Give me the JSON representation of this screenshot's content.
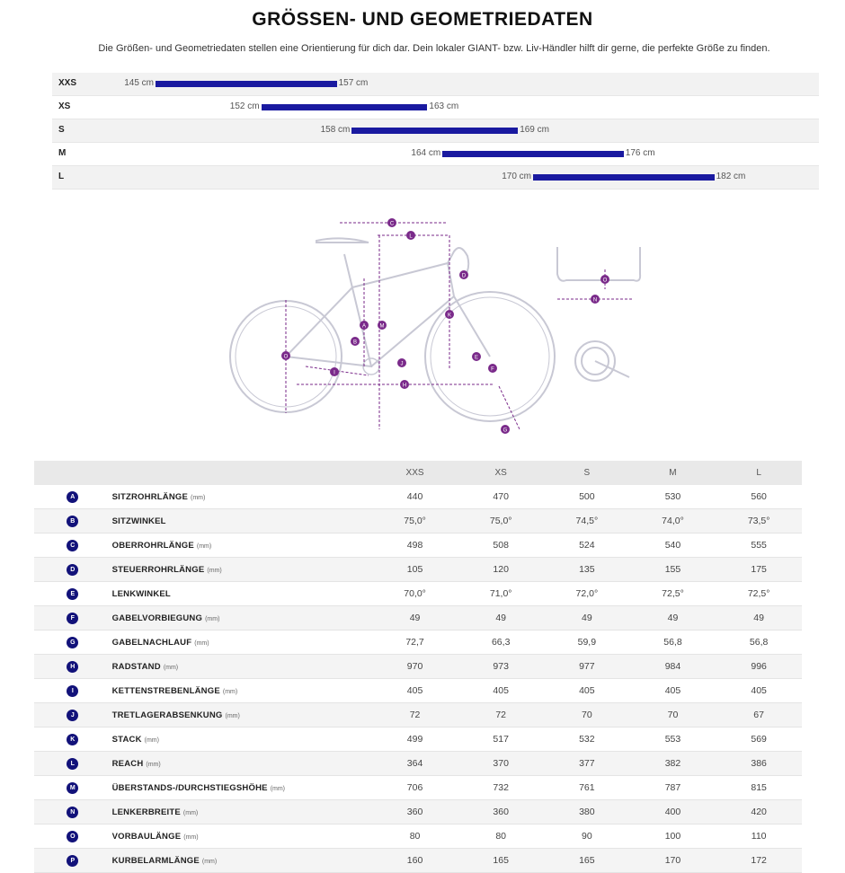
{
  "title": "GRÖSSEN- UND GEOMETRIEDATEN",
  "subtitle": "Die Größen- und Geometriedaten stellen eine Orientierung für dich dar. Dein lokaler GIANT- bzw. Liv-Händler hilft dir gerne, die perfekte Größe zu finden.",
  "size_chart": {
    "rows": [
      {
        "size": "XXS",
        "min": "145 cm",
        "max": "157 cm",
        "min_cm": 145,
        "max_cm": 157
      },
      {
        "size": "XS",
        "min": "152 cm",
        "max": "163 cm",
        "min_cm": 152,
        "max_cm": 163
      },
      {
        "size": "S",
        "min": "158 cm",
        "max": "169 cm",
        "min_cm": 158,
        "max_cm": 169
      },
      {
        "size": "M",
        "min": "164 cm",
        "max": "176 cm",
        "min_cm": 164,
        "max_cm": 176
      },
      {
        "size": "L",
        "min": "170 cm",
        "max": "182 cm",
        "min_cm": 170,
        "max_cm": 182
      }
    ]
  },
  "diagram_labels": [
    "C",
    "L",
    "D",
    "K",
    "A",
    "M",
    "B",
    "J",
    "E",
    "F",
    "O",
    "I",
    "H",
    "G",
    "O",
    "N"
  ],
  "geometry_table": {
    "headers": [
      "XXS",
      "XS",
      "S",
      "M",
      "L"
    ],
    "rows": [
      {
        "letter": "A",
        "name": "SITZROHRLÄNGE",
        "unit": "(mm)",
        "values": [
          "440",
          "470",
          "500",
          "530",
          "560"
        ]
      },
      {
        "letter": "B",
        "name": "SITZWINKEL",
        "unit": "",
        "values": [
          "75,0°",
          "75,0°",
          "74,5°",
          "74,0°",
          "73,5°"
        ]
      },
      {
        "letter": "C",
        "name": "OBERROHRLÄNGE",
        "unit": "(mm)",
        "values": [
          "498",
          "508",
          "524",
          "540",
          "555"
        ]
      },
      {
        "letter": "D",
        "name": "STEUERROHRLÄNGE",
        "unit": "(mm)",
        "values": [
          "105",
          "120",
          "135",
          "155",
          "175"
        ]
      },
      {
        "letter": "E",
        "name": "LENKWINKEL",
        "unit": "",
        "values": [
          "70,0°",
          "71,0°",
          "72,0°",
          "72,5°",
          "72,5°"
        ]
      },
      {
        "letter": "F",
        "name": "GABELVORBIEGUNG",
        "unit": "(mm)",
        "values": [
          "49",
          "49",
          "49",
          "49",
          "49"
        ]
      },
      {
        "letter": "G",
        "name": "GABELNACHLAUF",
        "unit": "(mm)",
        "values": [
          "72,7",
          "66,3",
          "59,9",
          "56,8",
          "56,8"
        ]
      },
      {
        "letter": "H",
        "name": "RADSTAND",
        "unit": "(mm)",
        "values": [
          "970",
          "973",
          "977",
          "984",
          "996"
        ]
      },
      {
        "letter": "I",
        "name": "KETTENSTREBENLÄNGE",
        "unit": "(mm)",
        "values": [
          "405",
          "405",
          "405",
          "405",
          "405"
        ]
      },
      {
        "letter": "J",
        "name": "TRETLAGERABSENKUNG",
        "unit": "(mm)",
        "values": [
          "72",
          "72",
          "70",
          "70",
          "67"
        ]
      },
      {
        "letter": "K",
        "name": "STACK",
        "unit": "(mm)",
        "values": [
          "499",
          "517",
          "532",
          "553",
          "569"
        ]
      },
      {
        "letter": "L",
        "name": "REACH",
        "unit": "(mm)",
        "values": [
          "364",
          "370",
          "377",
          "382",
          "386"
        ]
      },
      {
        "letter": "M",
        "name": "ÜBERSTANDS-/DURCHSTIEGSHÖHE",
        "unit": "(mm)",
        "values": [
          "706",
          "732",
          "761",
          "787",
          "815"
        ]
      },
      {
        "letter": "N",
        "name": "LENKERBREITE",
        "unit": "(mm)",
        "values": [
          "360",
          "360",
          "380",
          "400",
          "420"
        ]
      },
      {
        "letter": "O",
        "name": "VORBAULÄNGE",
        "unit": "(mm)",
        "values": [
          "80",
          "80",
          "90",
          "100",
          "110"
        ]
      },
      {
        "letter": "P",
        "name": "KURBELARMLÄNGE",
        "unit": "(mm)",
        "values": [
          "160",
          "165",
          "165",
          "170",
          "172"
        ]
      }
    ]
  },
  "colors": {
    "bar": "#1a1aa0",
    "badge": "#12127a",
    "dimension": "#7a2a8a",
    "bike": "#c8c8d4"
  }
}
